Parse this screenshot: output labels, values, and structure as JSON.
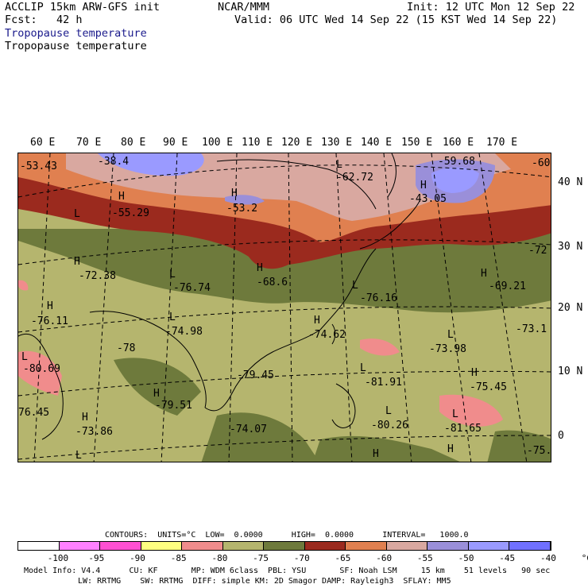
{
  "header": {
    "model_line": "ACCLIP 15km ARW-GFS init",
    "fcst_line": "Fcst:   42 h",
    "org": "NCAR/MMM",
    "init": "Init: 12 UTC Mon 12 Sep 22",
    "valid": "Valid: 06 UTC Wed 14 Sep 22 (15 KST Wed 14 Sep 22)",
    "field_title_1": "Tropopause temperature",
    "field_title_2": "Tropopause temperature"
  },
  "axes": {
    "lon_labels": [
      "60 E",
      "70 E",
      "80 E",
      "90 E",
      "100 E",
      "110 E",
      "120 E",
      "130 E",
      "140 E",
      "150 E",
      "160 E",
      "170 E"
    ],
    "lat_labels": [
      "40 N",
      "30 N",
      "20 N",
      "10 N",
      "0"
    ]
  },
  "map_labels": [
    {
      "text": "-53.43"
    },
    {
      "text": "-38.4"
    },
    {
      "text": "-55.29"
    },
    {
      "text": "-53.2"
    },
    {
      "text": "-62.72"
    },
    {
      "text": "-59.68"
    },
    {
      "text": "-60"
    },
    {
      "text": "-43.05"
    },
    {
      "text": "-72.38"
    },
    {
      "text": "-76.74"
    },
    {
      "text": "-68.6"
    },
    {
      "text": "-69.21"
    },
    {
      "text": "-72"
    },
    {
      "text": "-76.11"
    },
    {
      "text": "-74.98"
    },
    {
      "text": "-76.16"
    },
    {
      "text": "-74.62"
    },
    {
      "text": "-73.1"
    },
    {
      "text": "-78"
    },
    {
      "text": "-73.98"
    },
    {
      "text": "-80.69"
    },
    {
      "text": "-79.45"
    },
    {
      "text": "-81.91"
    },
    {
      "text": "-75.45"
    },
    {
      "text": "76.45"
    },
    {
      "text": "-79.51"
    },
    {
      "text": "-81.65"
    },
    {
      "text": "-73.86"
    },
    {
      "text": "-74.07"
    },
    {
      "text": "-80.26"
    },
    {
      "text": "-75."
    }
  ],
  "legend": {
    "contours_line": "CONTOURS:  UNITS=°C  LOW=  0.0000      HIGH=  0.0000      INTERVAL=   1000.0",
    "colors": [
      "#ffffff",
      "#ff80ff",
      "#ff50d2",
      "#ffff80",
      "#f08c8c",
      "#b5b56e",
      "#6e7a3c",
      "#9b2a1e",
      "#e08050",
      "#d9a8a0",
      "#9a8fd9",
      "#9a9aff",
      "#7070ff"
    ],
    "tick_labels": [
      "-100",
      "-95",
      "-90",
      "-85",
      "-80",
      "-75",
      "-70",
      "-65",
      "-60",
      "-55",
      "-50",
      "-45",
      "-40",
      "°C"
    ]
  },
  "footer": {
    "line1": "Model Info: V4.4      CU: KF       MP: WDM 6class  PBL: YSU       SF: Noah LSM     15 km    51 levels   90 sec",
    "line2": "LW: RRTMG    SW: RRTMG  DIFF: simple KM: 2D Smagor DAMP: Rayleigh3  SFLAY: MM5"
  }
}
